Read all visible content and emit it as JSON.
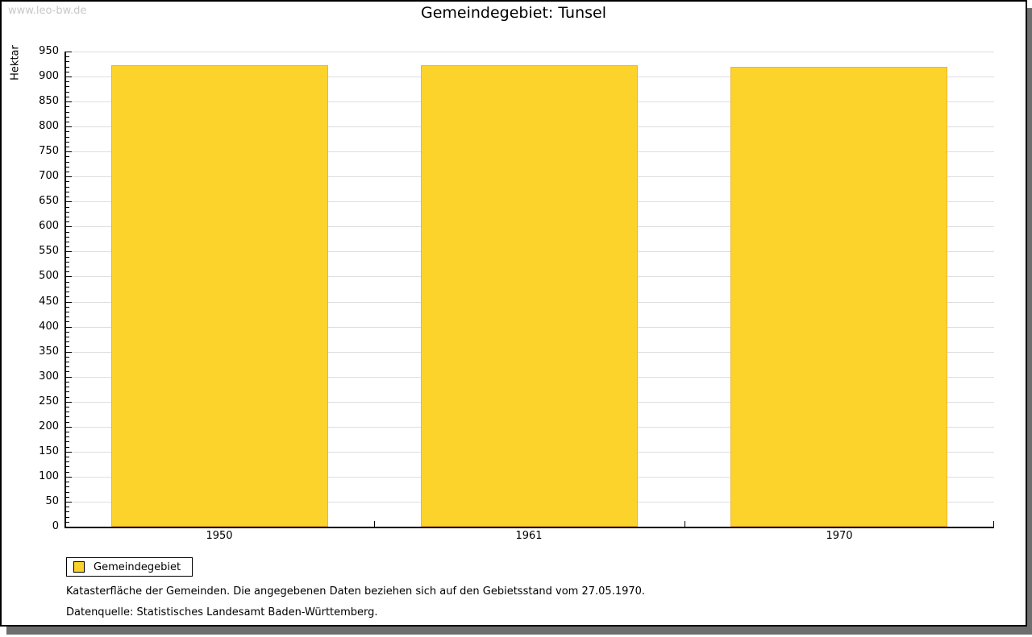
{
  "watermark": "www.leo-bw.de",
  "title": "Gemeindegebiet: Tunsel",
  "legend": {
    "label": "Gemeindegebiet"
  },
  "footnotes": {
    "line1": "Katasterfläche der Gemeinden. Die angegebenen Daten beziehen sich auf den Gebietsstand vom 27.05.1970.",
    "line2": "Datenquelle: Statistisches Landesamt Baden-Württemberg."
  },
  "colors": {
    "bar_fill": "#fcd32b",
    "bar_border": "#f0b429",
    "gridline": "#dedede",
    "axis": "#000000",
    "watermark": "#c8c8c8",
    "frame_shadow": "#6e6e6e"
  },
  "chart_data": {
    "type": "bar",
    "title": "Gemeindegebiet: Tunsel",
    "categories": [
      "1950",
      "1961",
      "1970"
    ],
    "series": [
      {
        "name": "Gemeindegebiet",
        "values": [
          922,
          922,
          920
        ]
      }
    ],
    "xlabel": "",
    "ylabel": "Hektar",
    "ylim": [
      0,
      950
    ],
    "ytick_major": 50,
    "ytick_minor": 10,
    "ytick_labels": [
      "0",
      "50",
      "100",
      "150",
      "200",
      "250",
      "300",
      "350",
      "400",
      "450",
      "500",
      "550",
      "600",
      "650",
      "700",
      "750",
      "800",
      "850",
      "900",
      "950"
    ],
    "grid": true,
    "gridlines": "horizontal-major",
    "legend_position": "bottom-left",
    "bar_color": "#fcd32b"
  }
}
